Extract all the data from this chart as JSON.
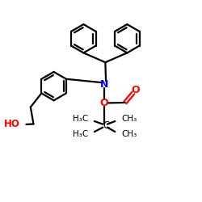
{
  "bg_color": "#ffffff",
  "bond_color": "#000000",
  "N_color": "#0000ff",
  "O_color": "#ff0000",
  "OH_color": "#ff0000",
  "lw": 1.6,
  "figsize": [
    2.5,
    2.5
  ],
  "dpi": 100,
  "xlim": [
    0,
    10
  ],
  "ylim": [
    0,
    10
  ]
}
